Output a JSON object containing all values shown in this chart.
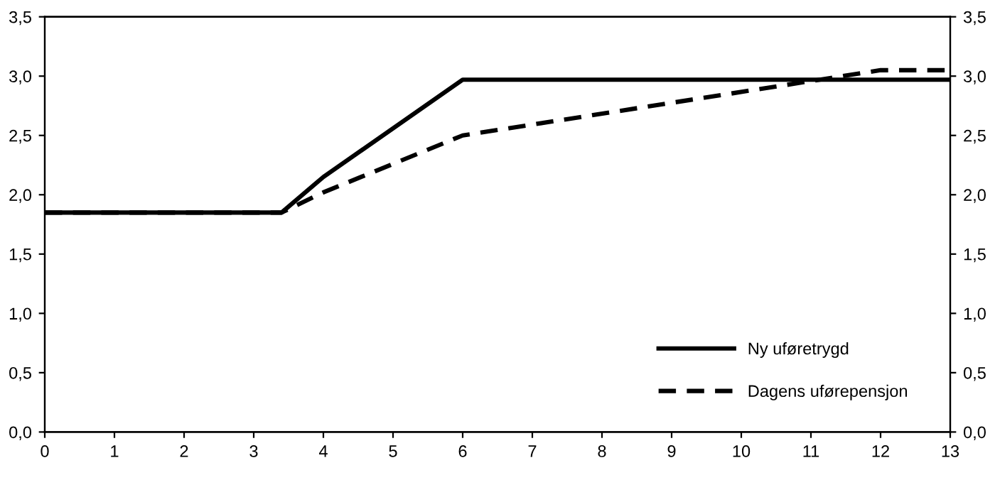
{
  "chart_data": {
    "type": "line",
    "xlim": [
      0,
      13
    ],
    "xticks": [
      0,
      1,
      2,
      3,
      4,
      5,
      6,
      7,
      8,
      9,
      10,
      11,
      12,
      13
    ],
    "ylim": [
      0,
      3.5
    ],
    "yticks": [
      {
        "value": 0,
        "label": "0,0"
      },
      {
        "value": 0.5,
        "label": "0,5"
      },
      {
        "value": 1,
        "label": "1,0"
      },
      {
        "value": 1.5,
        "label": "1,5"
      },
      {
        "value": 2,
        "label": "2,0"
      },
      {
        "value": 2.5,
        "label": "2,5"
      },
      {
        "value": 3,
        "label": "3,0"
      },
      {
        "value": 3.5,
        "label": "3,5"
      }
    ],
    "y2lim": [
      0,
      3.5
    ],
    "y2ticks": [
      {
        "value": 0,
        "label": "0,0"
      },
      {
        "value": 0.5,
        "label": "0,5"
      },
      {
        "value": 1,
        "label": "1,0"
      },
      {
        "value": 1.5,
        "label": "1,5"
      },
      {
        "value": 2,
        "label": "2,0"
      },
      {
        "value": 2.5,
        "label": "2,5"
      },
      {
        "value": 3,
        "label": "3,0"
      },
      {
        "value": 3.5,
        "label": "3,5"
      }
    ],
    "grid": false,
    "legend": "bottom right",
    "marker": "none",
    "series": [
      {
        "name": "Ny uføretrygd",
        "color": "#000000",
        "line_style": "solid",
        "x": [
          0,
          3.4,
          4,
          6,
          13
        ],
        "values": [
          1.85,
          1.85,
          2.15,
          2.97,
          2.97
        ]
      },
      {
        "name": "Dagens uførepensjon",
        "color": "#000000",
        "line_style": "dashed",
        "x": [
          0,
          3.4,
          4,
          6,
          12,
          13
        ],
        "values": [
          1.85,
          1.85,
          2.02,
          2.5,
          3.05,
          3.05
        ]
      }
    ]
  }
}
